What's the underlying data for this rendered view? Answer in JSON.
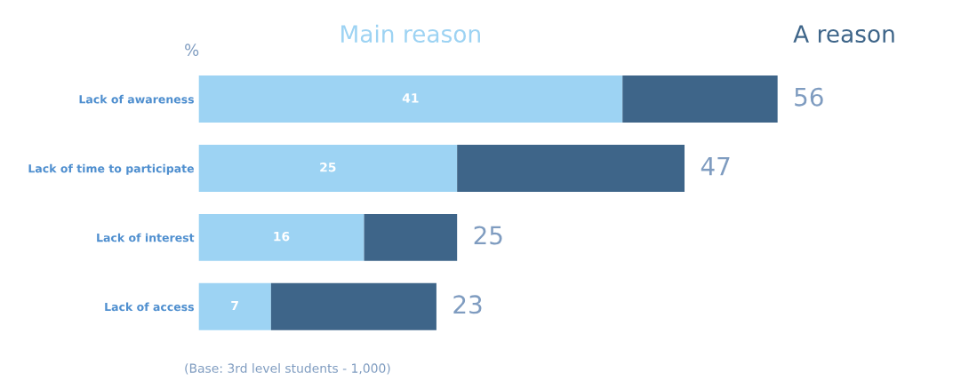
{
  "chart_data": {
    "type": "bar",
    "orientation": "horizontal",
    "stacked": true,
    "legend": false,
    "grid": false,
    "categories": [
      "Lack of awareness",
      "Lack of time to participate",
      "Lack of interest",
      "Lack of access"
    ],
    "series": [
      {
        "name": "Main reason",
        "color": "#9dd3f3",
        "values": [
          41,
          25,
          16,
          7
        ],
        "value_labels": [
          "41",
          "25",
          "16",
          "7"
        ]
      },
      {
        "name": "A reason",
        "color": "#3e6589",
        "values": [
          15,
          22,
          9,
          16
        ],
        "value_labels": [
          null,
          null,
          null,
          null
        ]
      }
    ],
    "totals": [
      "56",
      "47",
      "25",
      "23"
    ],
    "annotations": [
      "%",
      "(Base: 3rd level students - 1,000)"
    ]
  }
}
